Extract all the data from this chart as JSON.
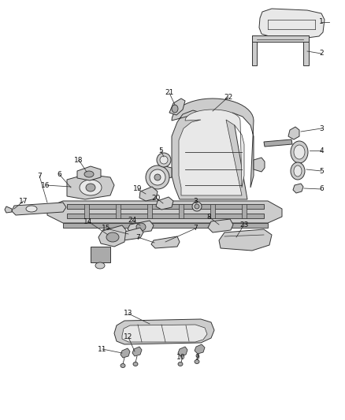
{
  "background_color": "#ffffff",
  "fig_width": 4.38,
  "fig_height": 5.33,
  "dpi": 100,
  "line_color": "#222222",
  "label_fontsize": 6.5,
  "text_color": "#111111",
  "part_edge_color": "#333333",
  "part_face_light": "#e8e8e8",
  "part_face_mid": "#cccccc",
  "part_face_dark": "#aaaaaa",
  "leader_color": "#333333",
  "leader_lw": 0.55,
  "part_lw": 0.7
}
